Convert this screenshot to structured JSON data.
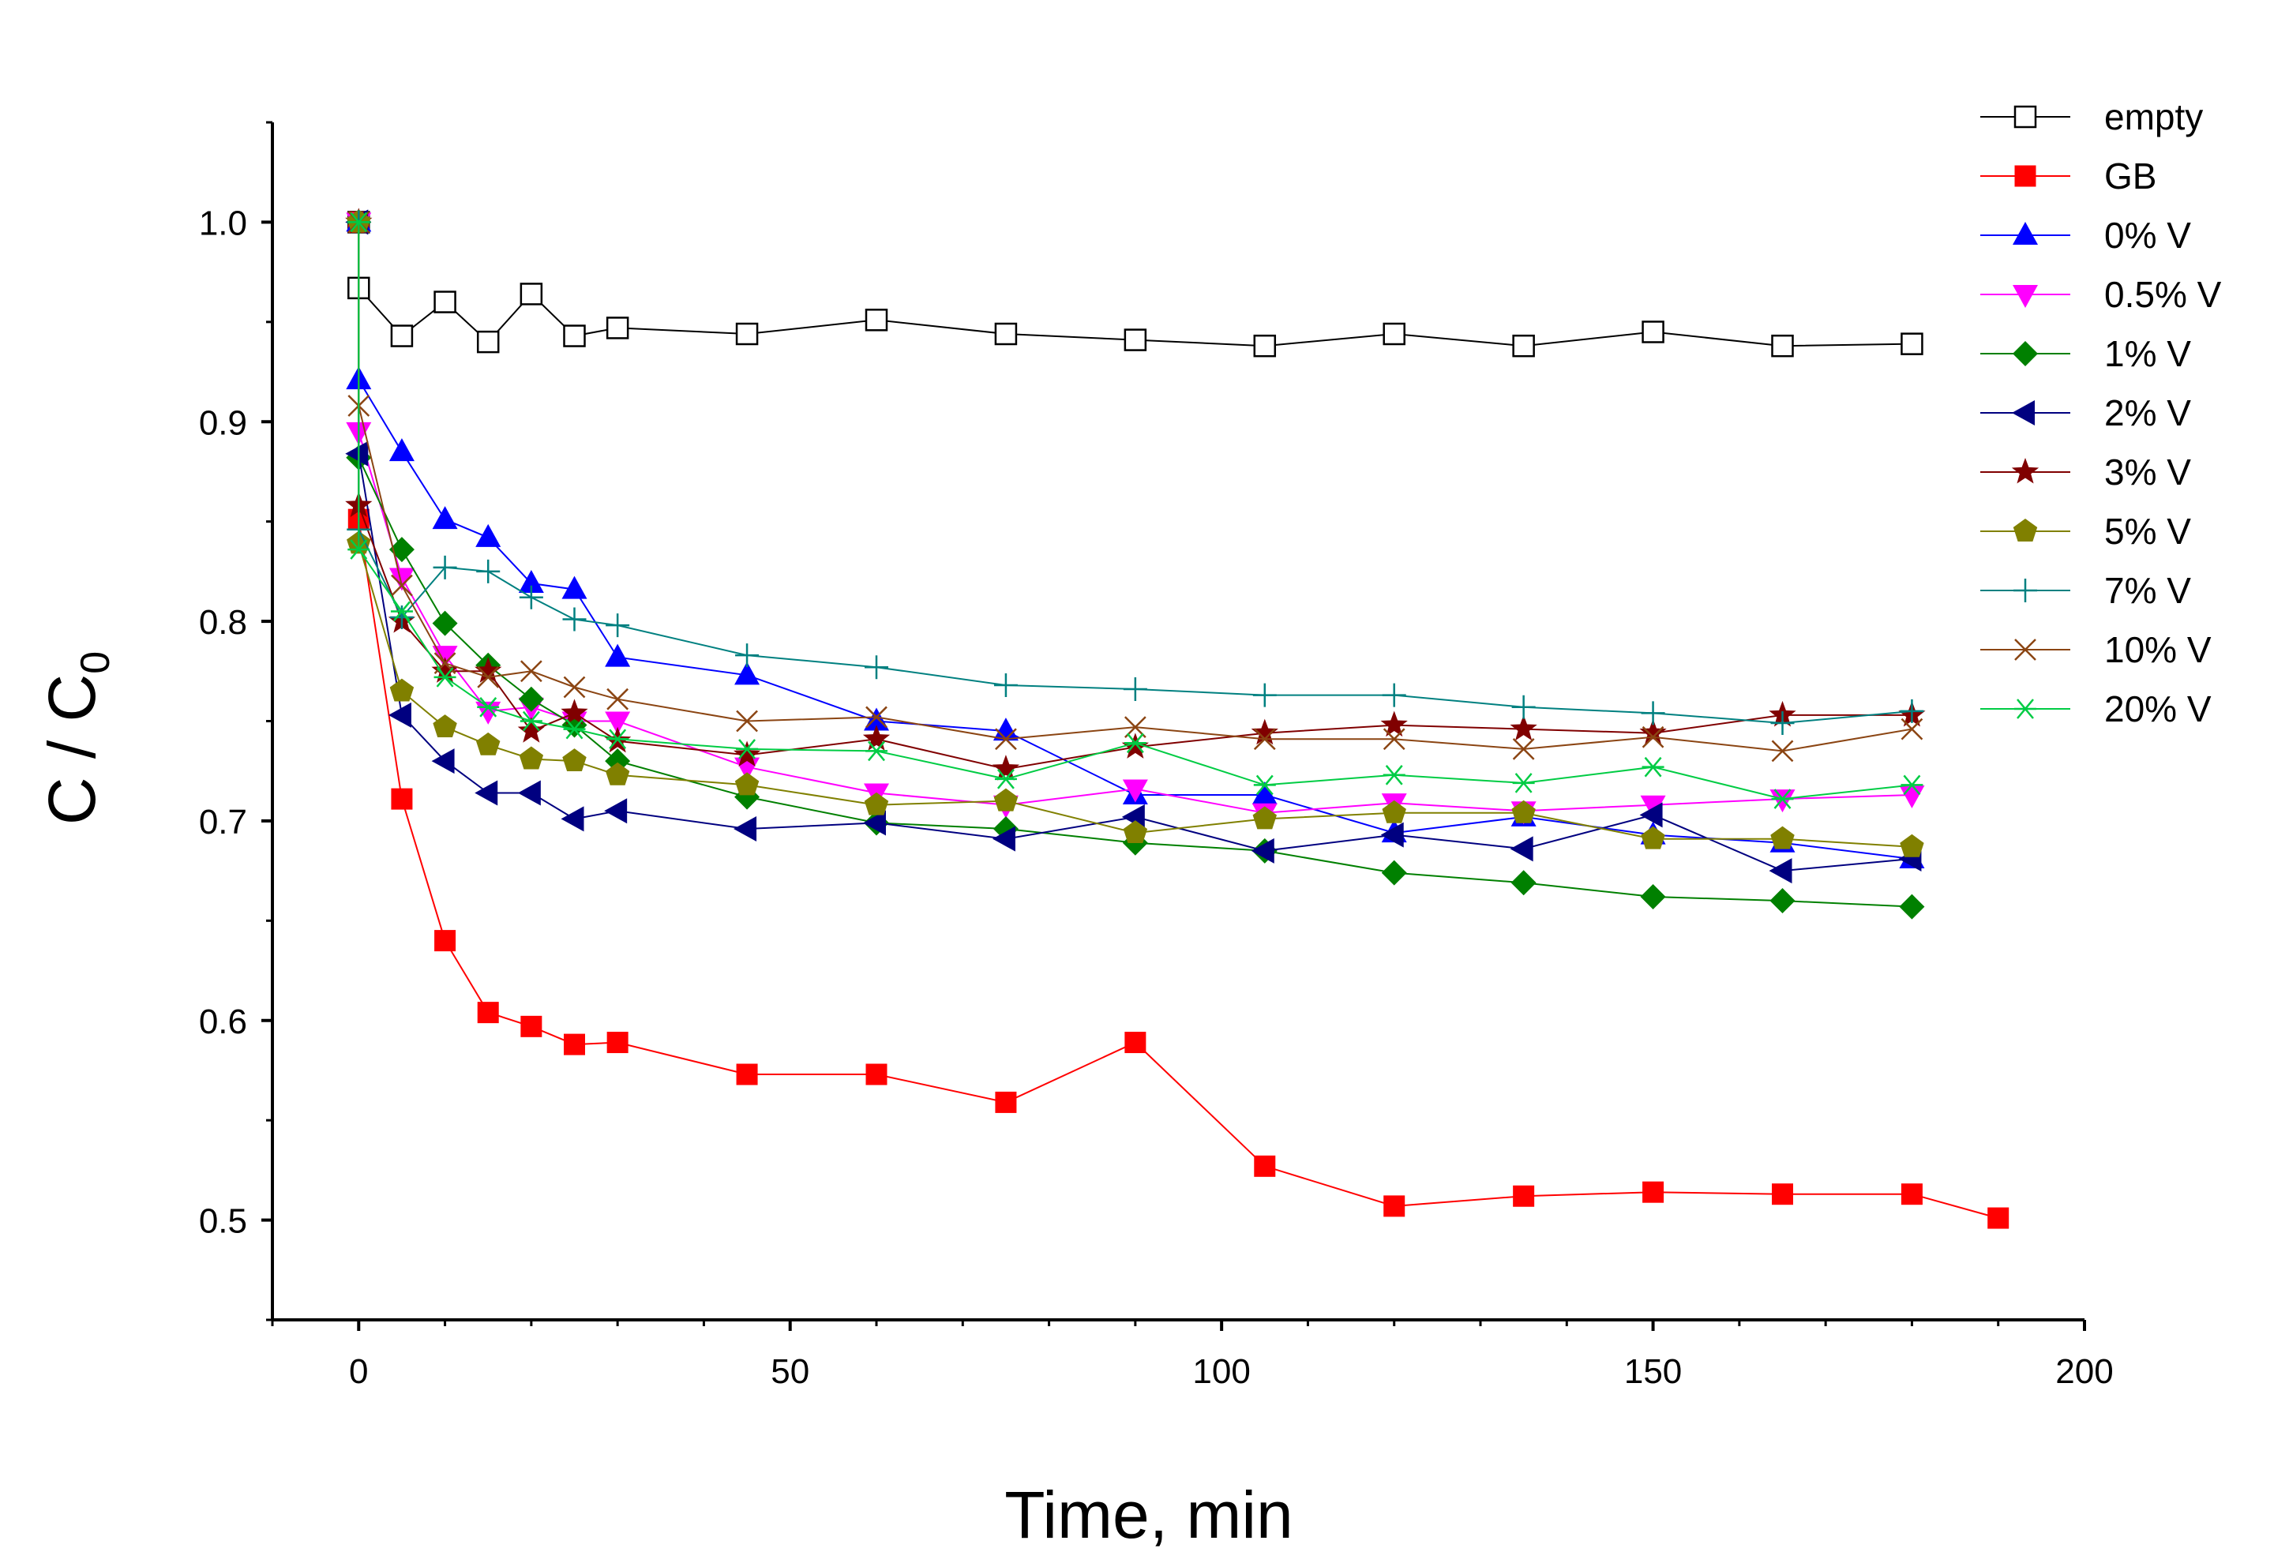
{
  "chart_data": {
    "type": "line",
    "xlabel": "Time, min",
    "ylabel": "C / C",
    "ylabel_sub": "0",
    "xlim": [
      -10,
      200
    ],
    "ylim": [
      0.45,
      1.05
    ],
    "x_ticks": [
      0,
      50,
      100,
      150,
      200
    ],
    "x_tick_labels": [
      "0",
      "50",
      "100",
      "150",
      "200"
    ],
    "y_ticks": [
      0.5,
      0.6,
      0.7,
      0.8,
      0.9,
      1.0
    ],
    "y_tick_labels": [
      "0.5",
      "0.6",
      "0.7",
      "0.8",
      "0.9",
      "1.0"
    ],
    "legend_position": "top-right",
    "grid": false,
    "series": [
      {
        "name": "empty",
        "color": "#000000",
        "marker": "square-open",
        "x": [
          0,
          0,
          5,
          10,
          15,
          20,
          25,
          30,
          45,
          60,
          75,
          90,
          105,
          120,
          135,
          150,
          165,
          180
        ],
        "y": [
          1.0,
          0.967,
          0.943,
          0.96,
          0.94,
          0.964,
          0.943,
          0.947,
          0.944,
          0.951,
          0.944,
          0.941,
          0.938,
          0.944,
          0.938,
          0.945,
          0.938,
          0.939
        ]
      },
      {
        "name": "GB",
        "color": "#ff0000",
        "marker": "square",
        "x": [
          0,
          0,
          5,
          10,
          15,
          20,
          25,
          30,
          45,
          60,
          75,
          90,
          105,
          120,
          135,
          150,
          165,
          180,
          190
        ],
        "y": [
          1.0,
          0.851,
          0.711,
          0.64,
          0.604,
          0.597,
          0.588,
          0.589,
          0.573,
          0.573,
          0.559,
          0.589,
          0.527,
          0.507,
          0.512,
          0.514,
          0.513,
          0.513,
          0.501
        ]
      },
      {
        "name": "0% V",
        "color": "#0000ff",
        "marker": "triangle-up",
        "x": [
          0,
          0,
          5,
          10,
          15,
          20,
          25,
          30,
          45,
          60,
          75,
          90,
          105,
          120,
          135,
          150,
          165,
          180
        ],
        "y": [
          1.0,
          0.921,
          0.885,
          0.851,
          0.842,
          0.819,
          0.816,
          0.782,
          0.773,
          0.75,
          0.745,
          0.713,
          0.713,
          0.694,
          0.702,
          0.693,
          0.689,
          0.681
        ]
      },
      {
        "name": "0.5% V",
        "color": "#ff00ff",
        "marker": "triangle-down",
        "x": [
          0,
          0,
          5,
          10,
          15,
          20,
          25,
          30,
          45,
          60,
          75,
          90,
          105,
          120,
          135,
          150,
          165,
          180
        ],
        "y": [
          1.0,
          0.895,
          0.822,
          0.783,
          0.755,
          0.757,
          0.75,
          0.75,
          0.727,
          0.714,
          0.708,
          0.716,
          0.704,
          0.709,
          0.705,
          0.708,
          0.711,
          0.713
        ]
      },
      {
        "name": "1% V",
        "color": "#008000",
        "marker": "diamond",
        "x": [
          0,
          0,
          5,
          10,
          15,
          20,
          25,
          30,
          45,
          60,
          75,
          90,
          105,
          120,
          135,
          150,
          165,
          180
        ],
        "y": [
          1.0,
          0.882,
          0.836,
          0.799,
          0.778,
          0.761,
          0.748,
          0.73,
          0.712,
          0.699,
          0.696,
          0.689,
          0.685,
          0.674,
          0.669,
          0.662,
          0.66,
          0.657
        ]
      },
      {
        "name": "2% V",
        "color": "#000080",
        "marker": "triangle-left",
        "x": [
          0,
          0,
          5,
          10,
          15,
          20,
          25,
          30,
          45,
          60,
          75,
          90,
          105,
          120,
          135,
          150,
          165,
          180
        ],
        "y": [
          1.0,
          0.884,
          0.753,
          0.73,
          0.714,
          0.714,
          0.701,
          0.705,
          0.696,
          0.699,
          0.691,
          0.702,
          0.685,
          0.693,
          0.686,
          0.703,
          0.675,
          0.681
        ]
      },
      {
        "name": "3% V",
        "color": "#800000",
        "marker": "star",
        "x": [
          0,
          0,
          5,
          10,
          15,
          20,
          25,
          30,
          45,
          60,
          75,
          90,
          105,
          120,
          135,
          150,
          165,
          180
        ],
        "y": [
          1.0,
          0.858,
          0.8,
          0.775,
          0.775,
          0.745,
          0.754,
          0.74,
          0.733,
          0.741,
          0.726,
          0.737,
          0.744,
          0.748,
          0.746,
          0.744,
          0.753,
          0.753
        ]
      },
      {
        "name": "5% V",
        "color": "#808000",
        "marker": "pentagon",
        "x": [
          0,
          0,
          5,
          10,
          15,
          20,
          25,
          30,
          45,
          60,
          75,
          90,
          105,
          120,
          135,
          150,
          165,
          180
        ],
        "y": [
          1.0,
          0.839,
          0.765,
          0.747,
          0.738,
          0.731,
          0.73,
          0.723,
          0.718,
          0.708,
          0.71,
          0.694,
          0.701,
          0.704,
          0.704,
          0.691,
          0.691,
          0.687
        ]
      },
      {
        "name": "7% V",
        "color": "#008080",
        "marker": "plus",
        "x": [
          0,
          0,
          5,
          10,
          15,
          20,
          25,
          30,
          45,
          60,
          75,
          90,
          105,
          120,
          135,
          150,
          165,
          180
        ],
        "y": [
          1.0,
          0.846,
          0.802,
          0.827,
          0.825,
          0.812,
          0.801,
          0.798,
          0.783,
          0.777,
          0.768,
          0.766,
          0.763,
          0.763,
          0.757,
          0.754,
          0.749,
          0.755
        ]
      },
      {
        "name": "10% V",
        "color": "#8b4513",
        "marker": "x",
        "x": [
          0,
          0,
          5,
          10,
          15,
          20,
          25,
          30,
          45,
          60,
          75,
          90,
          105,
          120,
          135,
          150,
          165,
          180
        ],
        "y": [
          1.0,
          0.908,
          0.818,
          0.779,
          0.772,
          0.775,
          0.767,
          0.761,
          0.75,
          0.752,
          0.741,
          0.747,
          0.741,
          0.741,
          0.736,
          0.742,
          0.735,
          0.746
        ]
      },
      {
        "name": "20% V",
        "color": "#00cc44",
        "marker": "asterisk",
        "x": [
          0,
          0,
          5,
          10,
          15,
          20,
          25,
          30,
          45,
          60,
          75,
          90,
          105,
          120,
          135,
          150,
          165,
          180
        ],
        "y": [
          1.0,
          0.836,
          0.805,
          0.772,
          0.757,
          0.75,
          0.746,
          0.741,
          0.736,
          0.735,
          0.721,
          0.739,
          0.718,
          0.723,
          0.719,
          0.727,
          0.711,
          0.718
        ]
      }
    ]
  }
}
